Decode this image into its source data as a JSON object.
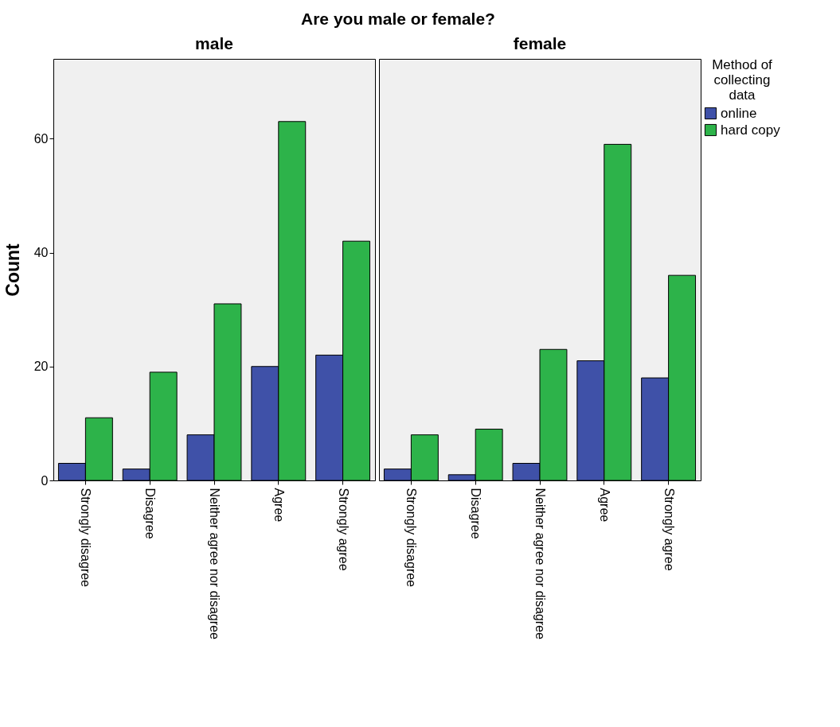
{
  "chart_data": [
    {
      "type": "bar",
      "title": "Are you male or female?",
      "subtitle": "male",
      "ylabel": "Count",
      "categories": [
        "Strongly disagree",
        "Disagree",
        "Neither agree nor disagree",
        "Agree",
        "Strongly agree"
      ],
      "series": [
        {
          "color": "#3f51a8",
          "values": [
            3,
            2,
            8,
            20,
            22
          ]
        },
        {
          "color": "#2db34a",
          "values": [
            11,
            19,
            31,
            63,
            42
          ]
        }
      ],
      "ylim": [
        0,
        74
      ],
      "yticks": [
        0,
        20,
        40,
        60
      ],
      "legend": false
    },
    {
      "type": "bar",
      "subtitle": "female",
      "legend_title": "Method of collecting data",
      "categories": [
        "Strongly disagree",
        "Disagree",
        "Neither agree nor disagree",
        "Agree",
        "Strongly agree"
      ],
      "series": [
        {
          "name": "online",
          "color": "#3f51a8",
          "values": [
            2,
            1,
            3,
            21,
            18
          ]
        },
        {
          "name": "hard copy",
          "color": "#2db34a",
          "values": [
            8,
            9,
            23,
            59,
            36
          ]
        }
      ],
      "ylim": [
        0,
        74
      ],
      "yticks": [
        0,
        20,
        40,
        60
      ],
      "legend": "top right",
      "tick_labels": "x"
    }
  ]
}
